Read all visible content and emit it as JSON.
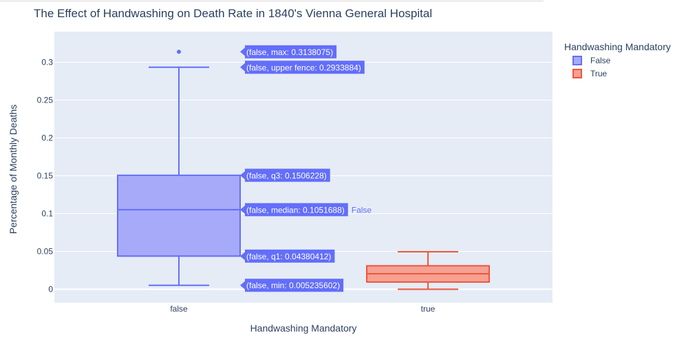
{
  "chart_data": {
    "type": "box",
    "title": "The Effect of Handwashing on Death Rate in 1840's Vienna General Hospital",
    "xlabel": "Handwashing Mandatory",
    "ylabel": "Percentage of Monthly Deaths",
    "categories": [
      "false",
      "true"
    ],
    "yticks": [
      {
        "value": 0,
        "label": "0"
      },
      {
        "value": 0.05,
        "label": "0.05"
      },
      {
        "value": 0.1,
        "label": "0.1"
      },
      {
        "value": 0.15,
        "label": "0.15"
      },
      {
        "value": 0.2,
        "label": "0.2"
      },
      {
        "value": 0.25,
        "label": "0.25"
      },
      {
        "value": 0.3,
        "label": "0.3"
      }
    ],
    "ylim": [
      -0.02,
      0.33
    ],
    "grid": true,
    "legend": {
      "title": "Handwashing Mandatory",
      "position": "top-right",
      "entries": [
        "False",
        "True"
      ]
    },
    "series": [
      {
        "name": "False",
        "category": "false",
        "color": "#636efa",
        "fill": "#a7aaf8",
        "min": 0.005235602,
        "q1": 0.04380412,
        "median": 0.1051688,
        "q3": 0.1506228,
        "upper_fence": 0.2933884,
        "max": 0.3138075,
        "outliers": [
          0.3138075
        ]
      },
      {
        "name": "True",
        "category": "true",
        "color": "#ef553b",
        "fill": "#f6a193",
        "min": 0.0,
        "q1": 0.0095,
        "median": 0.0205,
        "q3": 0.031,
        "upper_fence": 0.0495,
        "max": 0.0495,
        "outliers": []
      }
    ],
    "hover_labels": [
      {
        "key": "max",
        "text": "(false, max: 0.3138075)"
      },
      {
        "key": "upper_fence",
        "text": "(false, upper fence: 0.2933884)"
      },
      {
        "key": "q3",
        "text": "(false, q3: 0.1506228)"
      },
      {
        "key": "median",
        "text": "(false, median: 0.1051688)"
      },
      {
        "key": "q1",
        "text": "(false, q1: 0.04380412)"
      },
      {
        "key": "min",
        "text": "(false, min: 0.005235602)"
      }
    ],
    "hover_trace_label": "False"
  }
}
